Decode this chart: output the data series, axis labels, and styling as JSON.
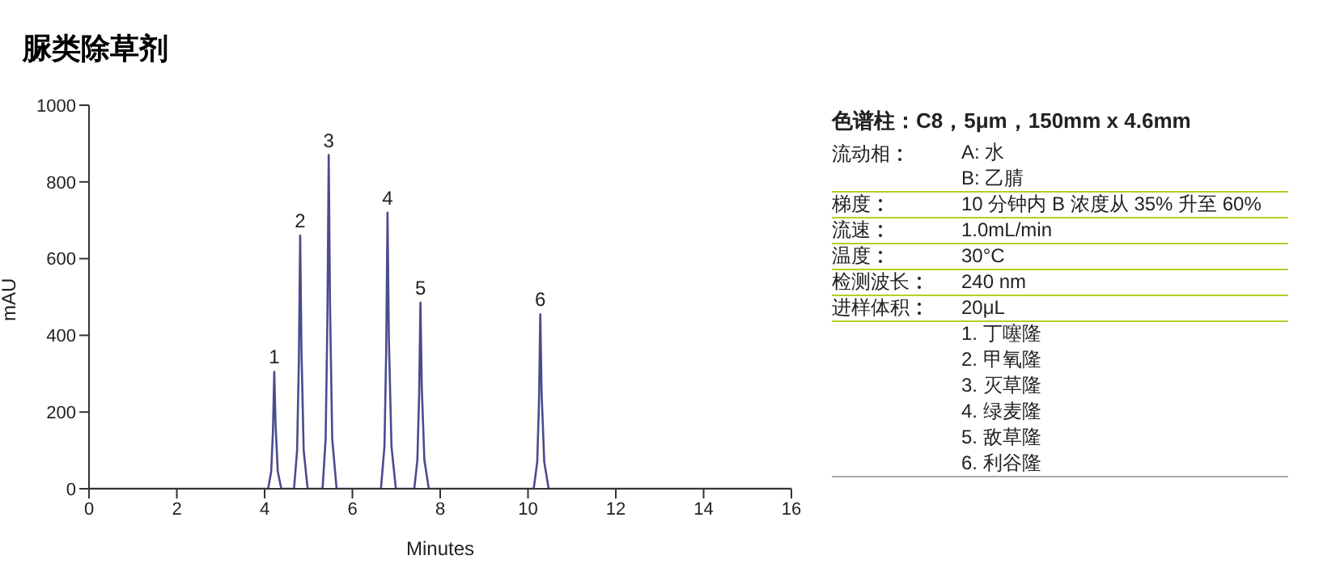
{
  "chart_data": [
    {
      "type": "line",
      "title": "脲类除草剂",
      "xlabel": "Minutes",
      "ylabel": "mAU",
      "xlim": [
        0,
        16
      ],
      "xticks": [
        0,
        2,
        4,
        6,
        8,
        10,
        12,
        14,
        16
      ],
      "ylim": [
        0,
        1000
      ],
      "yticks": [
        0,
        200,
        400,
        600,
        800,
        1000
      ],
      "grid": false,
      "legend": false,
      "marker": "none",
      "line_style": "solid",
      "series": [
        {
          "color": "#4b4b8f",
          "x": [
            0,
            3.3,
            4.08,
            4.15,
            4.19,
            4.22,
            4.25,
            4.3,
            4.38,
            4.67,
            4.74,
            4.78,
            4.81,
            4.84,
            4.89,
            4.98,
            5.32,
            5.39,
            5.43,
            5.46,
            5.49,
            5.54,
            5.64,
            6.65,
            6.73,
            6.77,
            6.8,
            6.83,
            6.89,
            6.99,
            7.41,
            7.48,
            7.52,
            7.55,
            7.58,
            7.64,
            7.74,
            10.13,
            10.21,
            10.25,
            10.28,
            10.31,
            10.37,
            10.47,
            16
          ],
          "values": [
            0,
            0,
            0,
            45,
            150,
            305,
            165,
            45,
            0,
            0,
            100,
            330,
            660,
            360,
            100,
            0,
            0,
            130,
            435,
            870,
            480,
            130,
            0,
            0,
            110,
            360,
            720,
            395,
            110,
            0,
            0,
            75,
            245,
            485,
            265,
            75,
            0,
            0,
            70,
            225,
            455,
            250,
            70,
            0,
            0
          ]
        }
      ],
      "annotations": [
        {
          "text": "1",
          "x": 4.22,
          "y": 305
        },
        {
          "text": "2",
          "x": 4.81,
          "y": 660
        },
        {
          "text": "3",
          "x": 5.46,
          "y": 870
        },
        {
          "text": "4",
          "x": 6.8,
          "y": 720
        },
        {
          "text": "5",
          "x": 7.55,
          "y": 485
        },
        {
          "text": "6",
          "x": 10.28,
          "y": 455
        },
        "1. 丁噻隆",
        "2. 甲氧隆",
        "3. 灭草隆",
        "4. 绿麦隆",
        "5. 敌草隆",
        "6. 利谷隆"
      ]
    },
    {
      "type": "other",
      "title": "色谱柱：C8，5μm，150mm x 4.6mm",
      "categories": [
        "流动相",
        null,
        "梯度",
        "流速",
        "温度",
        "检测波长",
        "进样体积"
      ],
      "annotations": [
        "A: 水",
        "B: 乙腈",
        "10 分钟内 B 浓度从 35% 升至 60%",
        "1.0mL/min",
        "30°C",
        "240 nm",
        "20μL"
      ]
    }
  ]
}
